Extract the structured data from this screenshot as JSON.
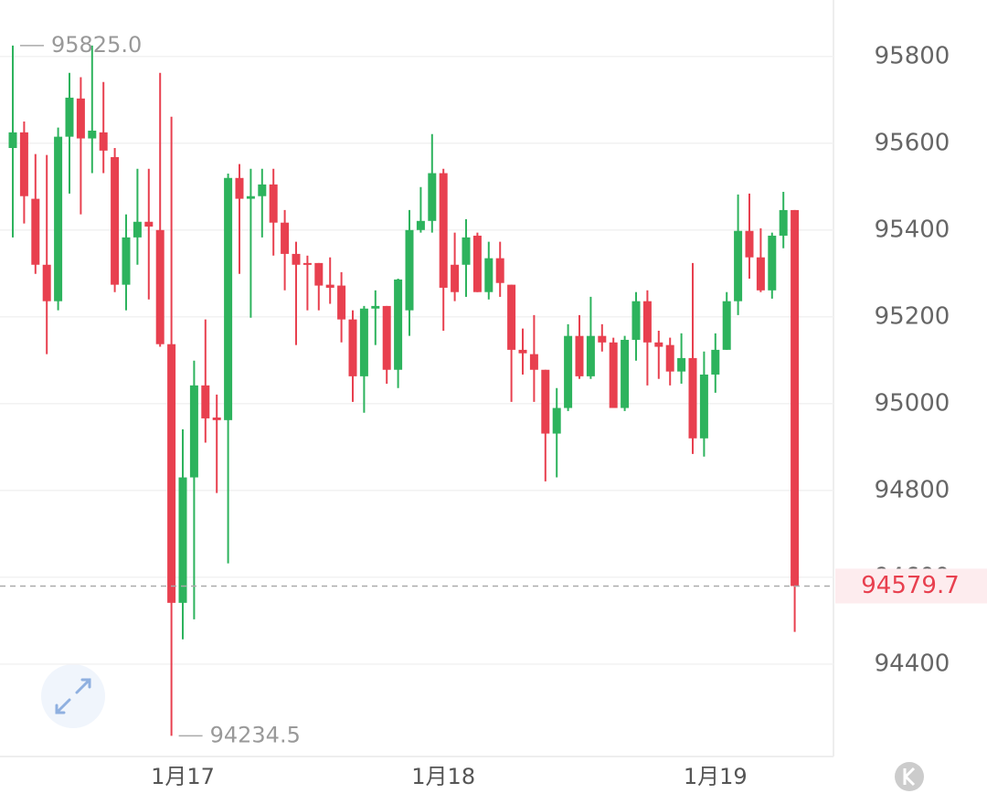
{
  "chart_data": {
    "type": "candlestick",
    "categories": [
      null,
      null,
      null,
      null,
      null,
      null,
      null,
      null,
      null,
      null,
      null,
      null,
      null,
      null,
      null,
      "1月17",
      null,
      null,
      null,
      null,
      null,
      null,
      null,
      null,
      null,
      null,
      null,
      null,
      null,
      null,
      null,
      null,
      null,
      null,
      null,
      null,
      null,
      null,
      "1月18",
      null,
      null,
      null,
      null,
      null,
      null,
      null,
      null,
      null,
      null,
      null,
      null,
      null,
      null,
      null,
      null,
      null,
      null,
      null,
      null,
      null,
      null,
      null,
      "1月19",
      null,
      null,
      null,
      null,
      null,
      null,
      null
    ],
    "open": [
      95589,
      95625,
      95472,
      95320,
      95236,
      95615,
      95703,
      95611,
      95625,
      95568,
      95274,
      95383,
      95419,
      95400,
      95137,
      94541,
      94830,
      95042,
      94968,
      94962,
      95520,
      95472,
      95478,
      95505,
      95417,
      95345,
      95324,
      95324,
      95274,
      95272,
      95194,
      95063,
      95219,
      95225,
      95078,
      95215,
      95400,
      95421,
      95531,
      95320,
      95320,
      95387,
      95257,
      95335,
      95274,
      95124,
      95114,
      95078,
      94931,
      94990,
      95156,
      95063,
      95156,
      95141,
      94990,
      95147,
      95236,
      95141,
      95135,
      95074,
      95105,
      94920,
      95067,
      95124,
      95236,
      95398,
      95337,
      95261,
      95387,
      95446
    ],
    "high": [
      95825,
      95650,
      95575,
      95573,
      95636,
      95762,
      95752,
      95825,
      95741,
      95589,
      95436,
      95541,
      95541,
      95762,
      95661,
      94941,
      95099,
      95194,
      95021,
      95530,
      95552,
      95541,
      95541,
      95541,
      95446,
      95373,
      95341,
      95324,
      95337,
      95303,
      95215,
      95225,
      95261,
      95225,
      95288,
      95446,
      95499,
      95621,
      95541,
      95394,
      95425,
      95394,
      95373,
      95373,
      95274,
      95173,
      95204,
      95078,
      95036,
      95183,
      95204,
      95246,
      95183,
      95152,
      95156,
      95257,
      95261,
      95168,
      95152,
      95162,
      95324,
      95120,
      95162,
      95257,
      95482,
      95484,
      95404,
      95394,
      95488,
      95446
    ],
    "low": [
      95383,
      95415,
      95299,
      95114,
      95215,
      95484,
      95436,
      95531,
      95531,
      95257,
      95215,
      95320,
      95240,
      95131,
      94234.5,
      94457,
      94503,
      94910,
      94794,
      94632,
      95299,
      95198,
      95383,
      95341,
      95261,
      95135,
      95215,
      95215,
      95230,
      95141,
      95004,
      94979,
      95135,
      95046,
      95036,
      95156,
      95394,
      95394,
      95168,
      95236,
      95246,
      95257,
      95240,
      95246,
      95004,
      95067,
      95004,
      94821,
      94830,
      94983,
      95057,
      95057,
      95120,
      94990,
      94983,
      95099,
      95042,
      95057,
      95042,
      95046,
      94884,
      94878,
      95025,
      95124,
      95204,
      95288,
      95257,
      95242,
      95358,
      94474
    ],
    "close": [
      95625,
      95478,
      95320,
      95236,
      95615,
      95705,
      95611,
      95629,
      95583,
      95274,
      95383,
      95419,
      95408,
      95137,
      94541,
      94830,
      95042,
      94966,
      94962,
      95520,
      95472,
      95478,
      95505,
      95417,
      95345,
      95320,
      95320,
      95272,
      95267,
      95194,
      95063,
      95219,
      95225,
      95078,
      95286,
      95400,
      95421,
      95531,
      95267,
      95257,
      95383,
      95257,
      95335,
      95278,
      95124,
      95116,
      95078,
      94931,
      94990,
      95156,
      95063,
      95156,
      95141,
      94990,
      95147,
      95236,
      95141,
      95131,
      95074,
      95105,
      94920,
      95067,
      95124,
      95236,
      95398,
      95337,
      95261,
      95387,
      95446,
      94579.7
    ],
    "up_color": "#2db35d",
    "down_color": "#e8404f",
    "ylim": [
      94187,
      95930
    ],
    "yticks": [
      94400,
      94600,
      94800,
      95000,
      95200,
      95400,
      95600,
      95800
    ],
    "grid": true,
    "max_label": {
      "value": 95825,
      "label": "95825.0"
    },
    "min_label": {
      "value": 94234.5,
      "label": "94234.5"
    },
    "last_price": 94579.7
  }
}
